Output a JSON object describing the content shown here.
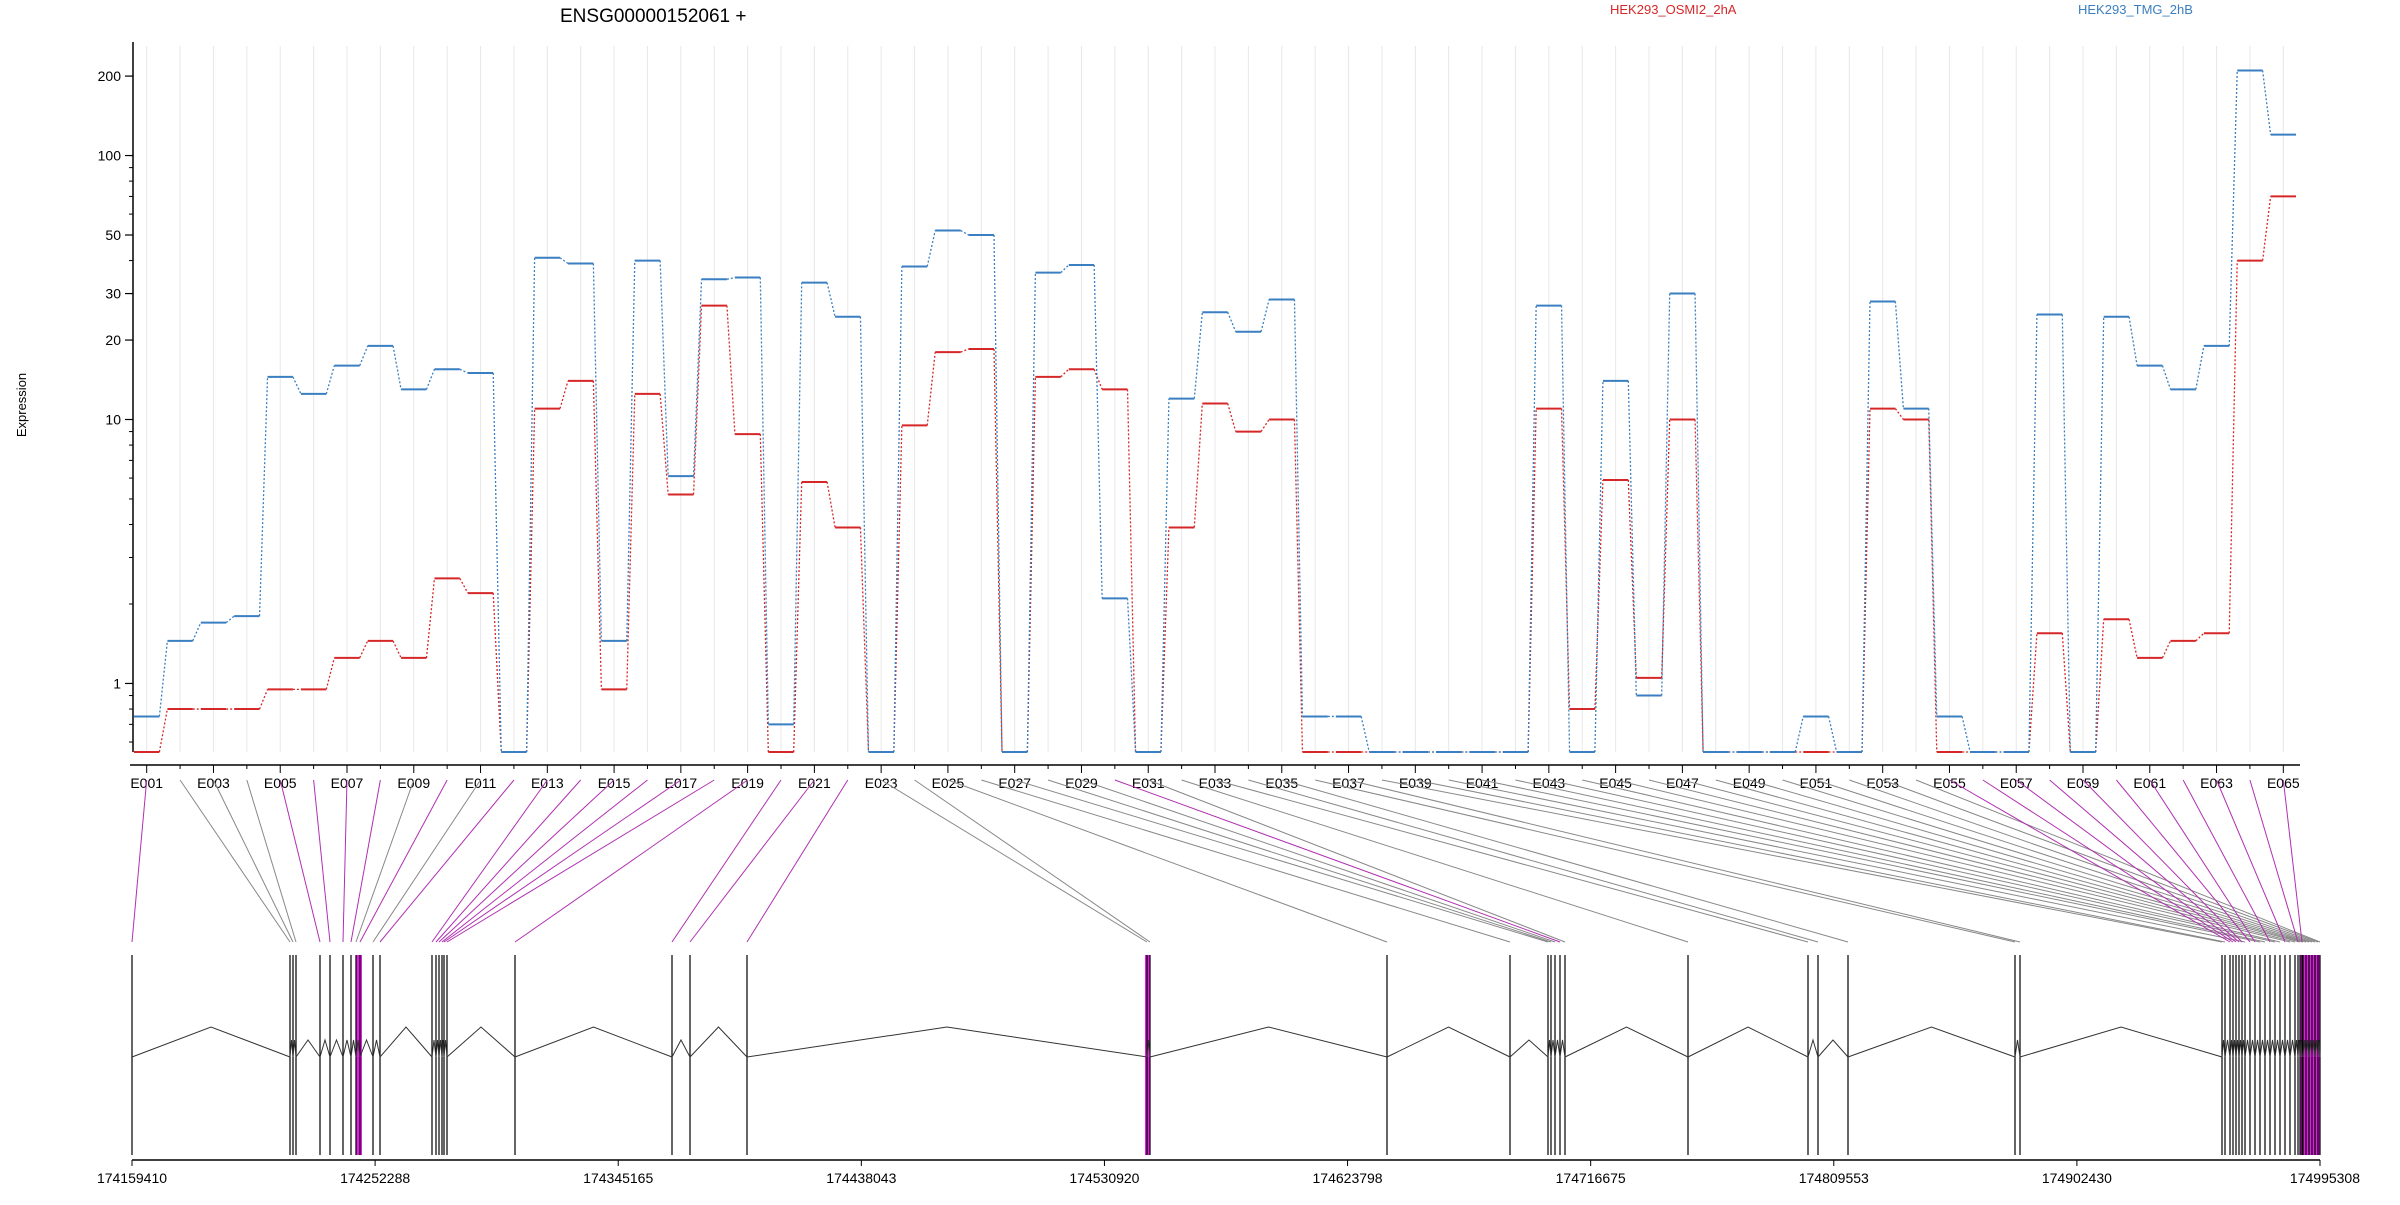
{
  "chart_data": {
    "type": "line",
    "title": "ENSG00000152061 +",
    "ylabel": "Expression",
    "xlabel": "",
    "yscale": "log",
    "ylim": [
      0.55,
      260
    ],
    "y_ticks": [
      1,
      10,
      20,
      30,
      50,
      100,
      200
    ],
    "y_tick_labels": [
      "1",
      "10",
      "20",
      "30",
      "50",
      "100",
      "200"
    ],
    "legend_placement": "top",
    "categories": [
      "E001",
      "E002",
      "E003",
      "E004",
      "E005",
      "E006",
      "E007",
      "E008",
      "E009",
      "E010",
      "E011",
      "E012",
      "E013",
      "E014",
      "E015",
      "E016",
      "E017",
      "E018",
      "E019",
      "E020",
      "E021",
      "E022",
      "E023",
      "E024",
      "E025",
      "E026",
      "E027",
      "E028",
      "E029",
      "E030",
      "E031",
      "E032",
      "E033",
      "E034",
      "E035",
      "E036",
      "E037",
      "E038",
      "E039",
      "E040",
      "E041",
      "E042",
      "E043",
      "E044",
      "E045",
      "E046",
      "E047",
      "E048",
      "E049",
      "E050",
      "E051",
      "E052",
      "E053",
      "E054",
      "E055",
      "E056",
      "E057",
      "E058",
      "E059",
      "E060",
      "E061",
      "E062",
      "E063",
      "E064",
      "E065"
    ],
    "x_tick_labels": [
      "E001",
      "E003",
      "E005",
      "E007",
      "E009",
      "E011",
      "E013",
      "E015",
      "E017",
      "E019",
      "E021",
      "E023",
      "E025",
      "E027",
      "E029",
      "E031",
      "E033",
      "E035",
      "E037",
      "E039",
      "E041",
      "E043",
      "E045",
      "E047",
      "E049",
      "E051",
      "E053",
      "E055",
      "E057",
      "E059",
      "E061",
      "E063",
      "E065"
    ],
    "series": [
      {
        "name": "HEK293_OSMI2_2hA",
        "color": "#d62728",
        "values": [
          0.55,
          0.8,
          0.8,
          0.8,
          0.95,
          0.95,
          1.25,
          1.45,
          1.25,
          2.5,
          2.2,
          0.55,
          11,
          14,
          0.95,
          12.5,
          5.2,
          27,
          8.8,
          0.55,
          5.8,
          3.9,
          0.55,
          9.5,
          18,
          18.5,
          0.55,
          14.5,
          15.5,
          13,
          0.55,
          3.9,
          11.5,
          9,
          10,
          0.55,
          0.55,
          0.55,
          0.55,
          0.55,
          0.55,
          0.55,
          11,
          0.8,
          5.9,
          1.05,
          10,
          0.55,
          0.55,
          0.55,
          0.55,
          0.55,
          11,
          10,
          0.55,
          0.55,
          0.55,
          1.55,
          0.55,
          1.75,
          1.25,
          1.45,
          1.55,
          40,
          70
        ]
      },
      {
        "name": "HEK293_TMG_2hB",
        "color": "#3a7fc1",
        "values": [
          0.75,
          1.45,
          1.7,
          1.8,
          14.5,
          12.5,
          16,
          19,
          13,
          15.5,
          15,
          0.55,
          41,
          39,
          1.45,
          40,
          6.1,
          34,
          34.5,
          0.7,
          33,
          24.5,
          0.55,
          38,
          52,
          50,
          0.55,
          36,
          38.5,
          2.1,
          0.55,
          12,
          25.5,
          21.5,
          28.5,
          0.75,
          0.75,
          0.55,
          0.55,
          0.55,
          0.55,
          0.55,
          27,
          0.55,
          14,
          0.9,
          30,
          0.55,
          0.55,
          0.55,
          0.75,
          0.55,
          28,
          11,
          0.75,
          0.55,
          0.55,
          25,
          0.55,
          24.5,
          16,
          13,
          19,
          210,
          120
        ]
      }
    ],
    "genomic_ticks": [
      "174159410",
      "174252288",
      "174345165",
      "174438043",
      "174530920",
      "174623798",
      "174716675",
      "174809553",
      "174902430",
      "174995308"
    ],
    "genomic_range": [
      174159410,
      174995308
    ],
    "highlight_exons": [
      1,
      5,
      6,
      7,
      8,
      10,
      12,
      13,
      14,
      15,
      16,
      17,
      18,
      19,
      20,
      21,
      22,
      30,
      55,
      56,
      57,
      58,
      59,
      60,
      61,
      62,
      63,
      64,
      65
    ],
    "highlight_color": "#b030b0",
    "exon_region_color": "#e020e0"
  }
}
